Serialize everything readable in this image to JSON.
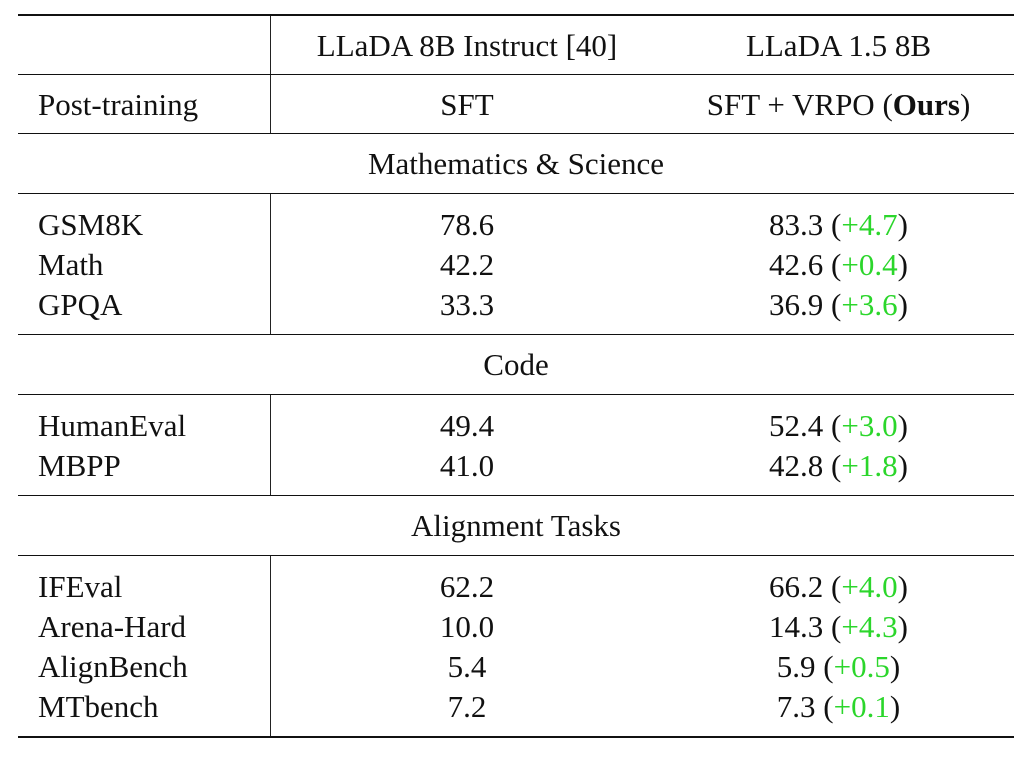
{
  "header": {
    "col2_model": "LLaDA 8B Instruct [40]",
    "col3_model": "LLaDA 1.5 8B",
    "row2_label": "Post-training",
    "col2_method": "SFT",
    "col3_method_prefix": "SFT + VRPO (",
    "col3_method_bold": "Ours",
    "col3_method_suffix": ")"
  },
  "sections": [
    {
      "title": "Mathematics & Science",
      "rows": [
        {
          "benchmark": "GSM8K",
          "sft": "78.6",
          "vrpo": "83.3",
          "gain": "+4.7"
        },
        {
          "benchmark": "Math",
          "sft": "42.2",
          "vrpo": "42.6",
          "gain": "+0.4"
        },
        {
          "benchmark": "GPQA",
          "sft": "33.3",
          "vrpo": "36.9",
          "gain": "+3.6"
        }
      ]
    },
    {
      "title": "Code",
      "rows": [
        {
          "benchmark": "HumanEval",
          "sft": "49.4",
          "vrpo": "52.4",
          "gain": "+3.0"
        },
        {
          "benchmark": "MBPP",
          "sft": "41.0",
          "vrpo": "42.8",
          "gain": "+1.8"
        }
      ]
    },
    {
      "title": "Alignment Tasks",
      "rows": [
        {
          "benchmark": "IFEval",
          "sft": "62.2",
          "vrpo": "66.2",
          "gain": "+4.0"
        },
        {
          "benchmark": "Arena-Hard",
          "sft": "10.0",
          "vrpo": "14.3",
          "gain": "+4.3"
        },
        {
          "benchmark": "AlignBench",
          "sft": "5.4",
          "vrpo": "5.9",
          "gain": "+0.5"
        },
        {
          "benchmark": "MTbench",
          "sft": "7.2",
          "vrpo": "7.3",
          "gain": "+0.1"
        }
      ]
    }
  ],
  "colors": {
    "gain": "#2bd62b",
    "text": "#111111",
    "rules": "#111111"
  }
}
